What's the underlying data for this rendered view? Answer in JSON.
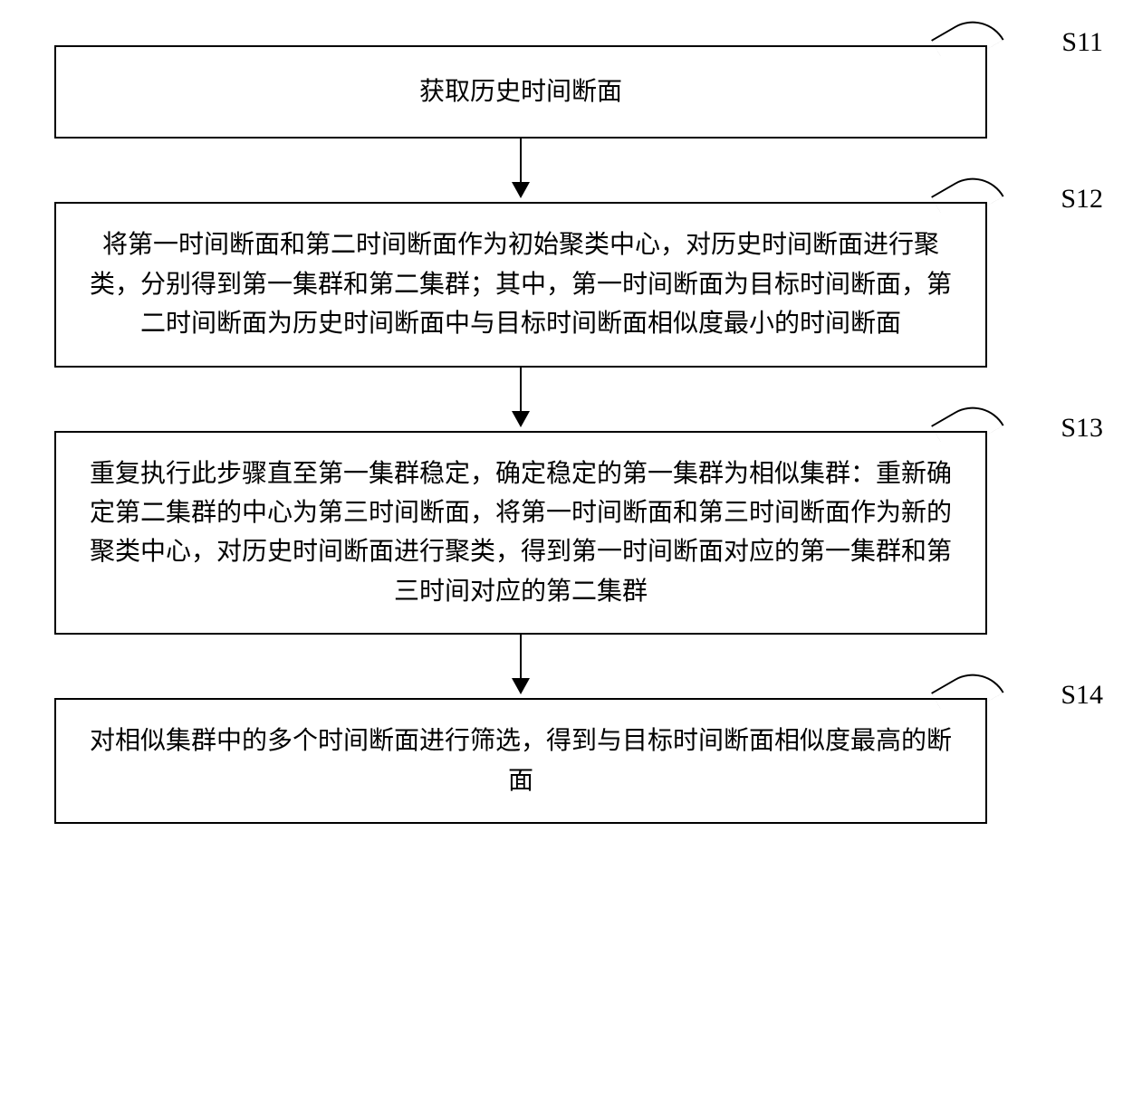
{
  "flowchart": {
    "type": "flowchart",
    "background_color": "#ffffff",
    "border_color": "#000000",
    "border_width": 2,
    "text_color": "#000000",
    "font_size": 28,
    "font_family": "SimSun",
    "label_font_size": 30,
    "label_font_family": "Times New Roman",
    "arrow_color": "#000000",
    "nodes": [
      {
        "id": "s11",
        "label": "S11",
        "text": "获取历史时间断面"
      },
      {
        "id": "s12",
        "label": "S12",
        "text": "将第一时间断面和第二时间断面作为初始聚类中心，对历史时间断面进行聚类，分别得到第一集群和第二集群；其中，第一时间断面为目标时间断面，第二时间断面为历史时间断面中与目标时间断面相似度最小的时间断面"
      },
      {
        "id": "s13",
        "label": "S13",
        "text": "重复执行此步骤直至第一集群稳定，确定稳定的第一集群为相似集群：重新确定第二集群的中心为第三时间断面，将第一时间断面和第三时间断面作为新的聚类中心，对历史时间断面进行聚类，得到第一时间断面对应的第一集群和第三时间对应的第二集群"
      },
      {
        "id": "s14",
        "label": "S14",
        "text": "对相似集群中的多个时间断面进行筛选，得到与目标时间断面相似度最高的断面"
      }
    ],
    "edges": [
      {
        "from": "s11",
        "to": "s12"
      },
      {
        "from": "s12",
        "to": "s13"
      },
      {
        "from": "s13",
        "to": "s14"
      }
    ]
  }
}
